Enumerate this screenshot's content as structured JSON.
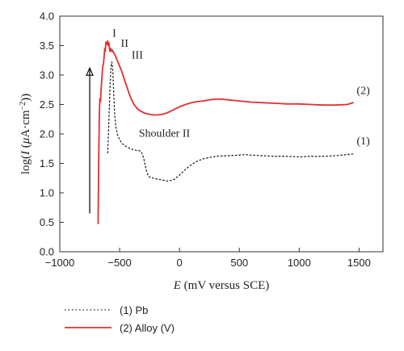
{
  "chart_data": {
    "type": "line",
    "title": "",
    "xlabel": {
      "italic": "E",
      "rest": " (mV versus SCE)"
    },
    "ylabel": {
      "pre": "log(",
      "italic": "I",
      "mid": " (",
      "mu": "μ",
      "post": "A·cm",
      "sup": "−2",
      "end": "))"
    },
    "xlim": [
      -1000,
      1700
    ],
    "ylim": [
      0.0,
      4.0
    ],
    "xticks": [
      -1000,
      -500,
      0,
      500,
      1000,
      1500
    ],
    "xtick_labels": [
      "−1000",
      "−500",
      "0",
      "500",
      "1000",
      "1500"
    ],
    "yticks": [
      0.0,
      0.5,
      1.0,
      1.5,
      2.0,
      2.5,
      3.0,
      3.5,
      4.0
    ],
    "ytick_labels": [
      "0.0",
      "0.5",
      "1.0",
      "1.5",
      "2.0",
      "2.5",
      "3.0",
      "3.5",
      "4.0"
    ],
    "grid": false,
    "legend_position": "bottom-left-outside",
    "series": [
      {
        "name": "(1) Pb",
        "color": "#222222",
        "dash": "dotted",
        "x": [
          -600,
          -590,
          -580,
          -572,
          -565,
          -558,
          -550,
          -540,
          -530,
          -520,
          -500,
          -480,
          -450,
          -420,
          -400,
          -380,
          -360,
          -340,
          -320,
          -300,
          -280,
          -260,
          -240,
          -200,
          -150,
          -100,
          -50,
          0,
          50,
          100,
          150,
          200,
          250,
          300,
          400,
          500,
          550,
          600,
          700,
          800,
          900,
          1000,
          1100,
          1200,
          1300,
          1400,
          1450
        ],
        "y": [
          1.68,
          2.2,
          2.8,
          3.15,
          3.22,
          3.1,
          2.7,
          2.3,
          2.1,
          2.0,
          1.9,
          1.84,
          1.79,
          1.76,
          1.74,
          1.73,
          1.72,
          1.72,
          1.7,
          1.6,
          1.4,
          1.28,
          1.26,
          1.24,
          1.22,
          1.2,
          1.22,
          1.3,
          1.4,
          1.48,
          1.54,
          1.58,
          1.6,
          1.62,
          1.63,
          1.64,
          1.65,
          1.64,
          1.63,
          1.62,
          1.62,
          1.61,
          1.62,
          1.62,
          1.63,
          1.65,
          1.66
        ]
      },
      {
        "name": "(2) Alloy (V)",
        "color": "#e03030",
        "dash": "solid",
        "x": [
          -680,
          -675,
          -670,
          -665,
          -660,
          -655,
          -650,
          -645,
          -640,
          -635,
          -630,
          -625,
          -620,
          -615,
          -610,
          -605,
          -600,
          -595,
          -590,
          -585,
          -580,
          -575,
          -570,
          -565,
          -560,
          -550,
          -540,
          -530,
          -520,
          -510,
          -500,
          -480,
          -460,
          -440,
          -420,
          -400,
          -380,
          -350,
          -300,
          -250,
          -200,
          -150,
          -100,
          -50,
          0,
          50,
          100,
          150,
          200,
          250,
          300,
          350,
          400,
          450,
          500,
          600,
          700,
          800,
          900,
          1000,
          1100,
          1200,
          1300,
          1400,
          1450
        ],
        "y": [
          0.48,
          1.5,
          2.3,
          2.6,
          2.55,
          2.75,
          2.9,
          3.05,
          3.15,
          3.2,
          3.3,
          3.45,
          3.4,
          3.56,
          3.54,
          3.52,
          3.58,
          3.5,
          3.55,
          3.45,
          3.4,
          3.45,
          3.43,
          3.4,
          3.42,
          3.38,
          3.35,
          3.3,
          3.25,
          3.2,
          3.15,
          3.05,
          2.92,
          2.8,
          2.68,
          2.58,
          2.5,
          2.42,
          2.36,
          2.33,
          2.32,
          2.33,
          2.36,
          2.41,
          2.46,
          2.5,
          2.53,
          2.55,
          2.56,
          2.58,
          2.59,
          2.59,
          2.58,
          2.57,
          2.56,
          2.54,
          2.53,
          2.52,
          2.51,
          2.51,
          2.5,
          2.49,
          2.49,
          2.5,
          2.53
        ]
      }
    ],
    "annotations": [
      {
        "text": "I",
        "x": -560,
        "y": 3.65
      },
      {
        "text": "II",
        "x": -490,
        "y": 3.48
      },
      {
        "text": "III",
        "x": -400,
        "y": 3.28
      },
      {
        "text": "Shoulder II",
        "x": -340,
        "y": 1.95
      },
      {
        "text": "(2)",
        "x": 1480,
        "y": 2.68
      },
      {
        "text": "(1)",
        "x": 1480,
        "y": 1.82
      }
    ],
    "arrow": {
      "x": -750,
      "y_from": 0.65,
      "y_to": 3.12
    },
    "legend": [
      {
        "label": "(1) Pb"
      },
      {
        "label": "(2) Alloy (V)"
      }
    ]
  }
}
